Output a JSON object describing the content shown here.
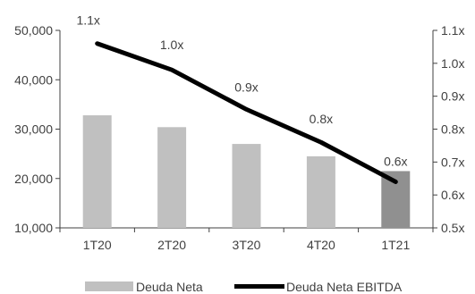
{
  "chart_data": {
    "type": "bar",
    "categories": [
      "1T20",
      "2T20",
      "3T20",
      "4T20",
      "1T21"
    ],
    "series": [
      {
        "name": "Deuda Neta",
        "type": "bar",
        "axis": "left",
        "values": [
          32800,
          30400,
          27000,
          24500,
          21500
        ],
        "colors": [
          "#c0c0c0",
          "#c0c0c0",
          "#c0c0c0",
          "#c0c0c0",
          "#909090"
        ]
      },
      {
        "name": "Deuda Neta EBITDA",
        "type": "line",
        "axis": "right",
        "values": [
          1.06,
          0.98,
          0.86,
          0.76,
          0.64
        ],
        "labels": [
          "1.1x",
          "1.0x",
          "0.9x",
          "0.8x",
          "0.6x"
        ],
        "color": "#000000"
      }
    ],
    "y_left": {
      "ylim": [
        10000,
        50000
      ],
      "ticks": [
        "10,000",
        "20,000",
        "30,000",
        "40,000",
        "50,000"
      ],
      "tick_values": [
        10000,
        20000,
        30000,
        40000,
        50000
      ]
    },
    "y_right": {
      "ylim": [
        0.5,
        1.1
      ],
      "ticks": [
        "0.5x",
        "0.6x",
        "0.7x",
        "0.8x",
        "0.9x",
        "1.0x",
        "1.1x"
      ],
      "tick_values": [
        0.5,
        0.6,
        0.7,
        0.8,
        0.9,
        1.0,
        1.1
      ]
    },
    "legend_position": "bottom",
    "grid": false
  }
}
